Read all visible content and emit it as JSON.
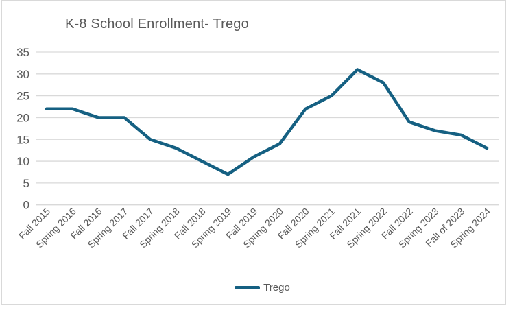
{
  "chart_data": {
    "type": "line",
    "title": "K-8 School Enrollment- Trego",
    "xlabel": "",
    "ylabel": "",
    "categories": [
      "Fall 2015",
      "Spring 2016",
      "Fall 2016",
      "Spring 2017",
      "Fall 2017",
      "Spring 2018",
      "Fall 2018",
      "Spring 2019",
      "Fall 2019",
      "Spring 2020",
      "Fall 2020",
      "Spring 2021",
      "Fall 2021",
      "Spring 2022",
      "Fall 2022",
      "Spring 2023",
      "Fall of 2023",
      "Spring 2024"
    ],
    "series": [
      {
        "name": "Trego",
        "values": [
          22,
          22,
          20,
          20,
          15,
          13,
          10,
          7,
          11,
          14,
          22,
          25,
          31,
          28,
          19,
          17,
          16,
          13
        ],
        "color": "#156082"
      }
    ],
    "ylim": [
      0,
      35
    ],
    "yticks": [
      0,
      5,
      10,
      15,
      20,
      25,
      30,
      35
    ],
    "grid": true,
    "legend_position": "bottom",
    "colors": {
      "line": "#156082",
      "text": "#595959",
      "gridline": "#D9D9D9",
      "border": "#D9D9D9",
      "background": "#FFFFFF"
    }
  }
}
